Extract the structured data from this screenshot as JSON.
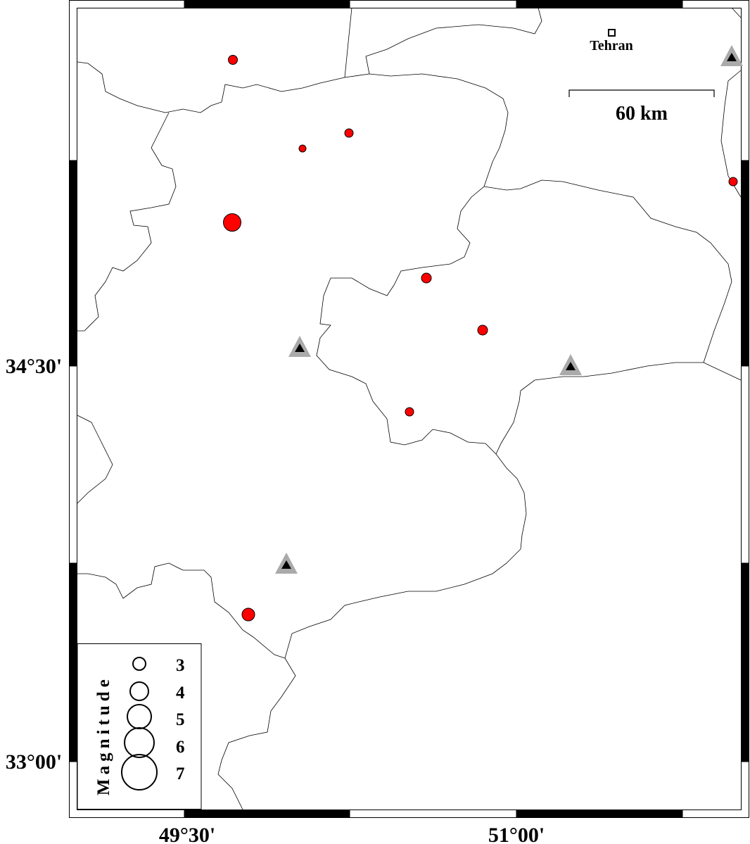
{
  "map": {
    "axes": {
      "x_ticks": [
        "49°30'",
        "51°00'"
      ],
      "y_ticks": [
        "34°30'",
        "33°00'"
      ]
    },
    "city": {
      "name": "Tehran"
    },
    "scale_bar": {
      "label": "60 km"
    },
    "colors": {
      "event": "#ff0000",
      "station_outer": "#aaaaaa",
      "station_inner": "#000000"
    },
    "legend": {
      "title": "Magnitude",
      "items": [
        "3",
        "4",
        "5",
        "6",
        "7"
      ]
    }
  }
}
